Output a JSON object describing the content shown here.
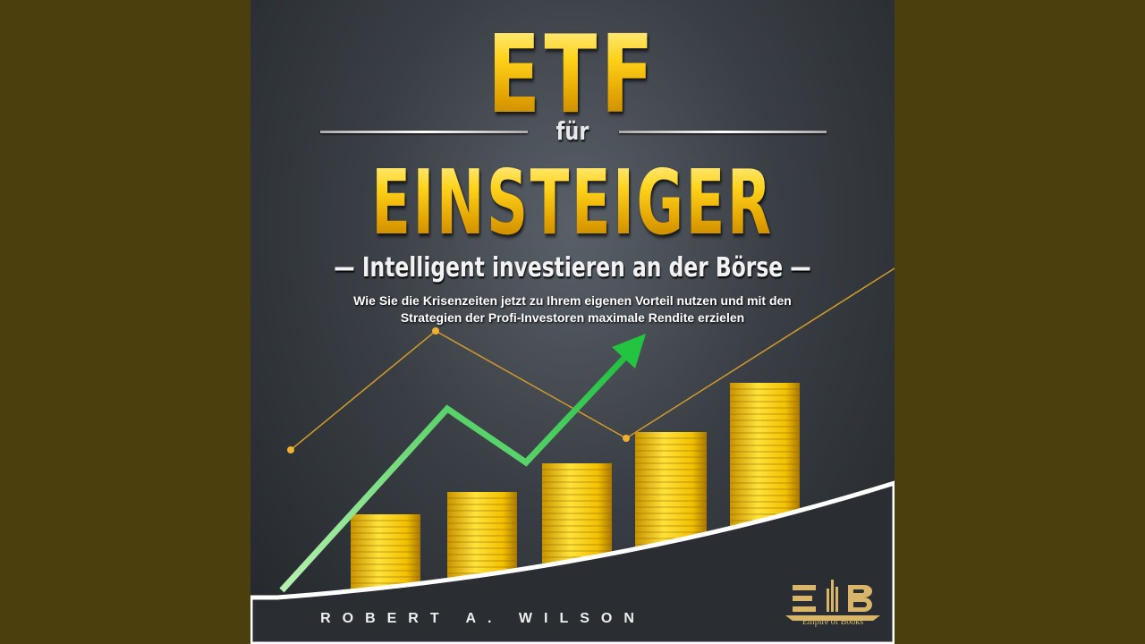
{
  "cover": {
    "title_top": "ETF",
    "title_connector": "für",
    "title_main": "EINSTEIGER",
    "subtitle": "Intelligent investieren an der Börse",
    "description_line1": "Wie Sie die Krisenzeiten jetzt zu Ihrem eigenen Vorteil nutzen und mit den",
    "description_line2": "Strategien der Profi-Investoren maximale Rendite erzielen",
    "author": "ROBERT A. WILSON",
    "publisher": "Empire of Books",
    "colors": {
      "gold": "#ffd21a",
      "arrow": "#3ecf5a",
      "line": "#d49a2a",
      "sidebar": "#4b400d"
    }
  }
}
